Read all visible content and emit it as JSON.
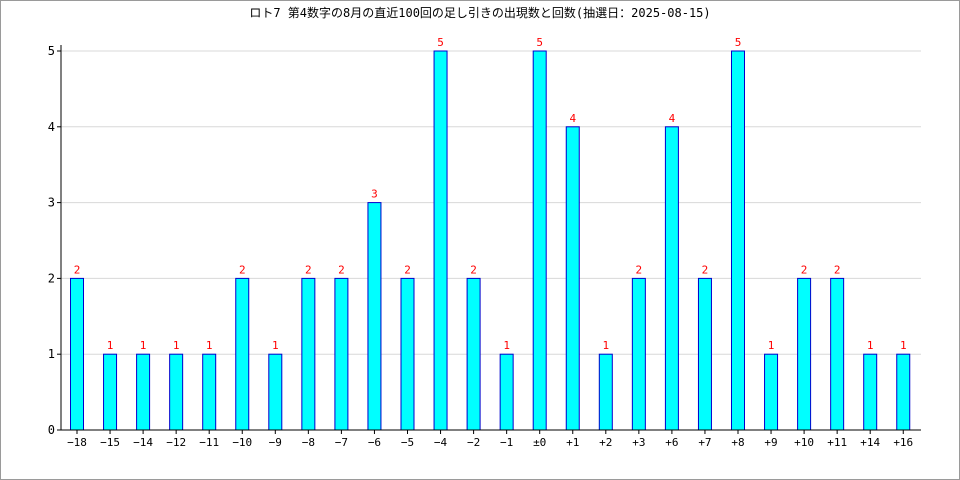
{
  "chart_data": {
    "type": "bar",
    "title": "ロト7 第4数字の8月の直近100回の足し引きの出現数と回数(抽選日：2025-08-15)",
    "categories": [
      "−18",
      "−15",
      "−14",
      "−12",
      "−11",
      "−10",
      "−9",
      "−8",
      "−7",
      "−6",
      "−5",
      "−4",
      "−2",
      "−1",
      "±0",
      "+1",
      "+2",
      "+3",
      "+6",
      "+7",
      "+8",
      "+9",
      "+10",
      "+11",
      "+14",
      "+16"
    ],
    "values": [
      2,
      1,
      1,
      1,
      1,
      2,
      1,
      2,
      2,
      3,
      2,
      5,
      2,
      1,
      5,
      4,
      1,
      2,
      4,
      2,
      5,
      1,
      2,
      2,
      1,
      1
    ],
    "ylim": [
      0,
      5
    ],
    "yticks": [
      0,
      1,
      2,
      3,
      4,
      5
    ],
    "grid": true,
    "data_labels": true,
    "colors": {
      "bar_fill": "#00ffff",
      "bar_stroke": "#0000cc",
      "label": "#ff0000",
      "grid": "#d8d8d8",
      "axis": "#000000"
    }
  }
}
